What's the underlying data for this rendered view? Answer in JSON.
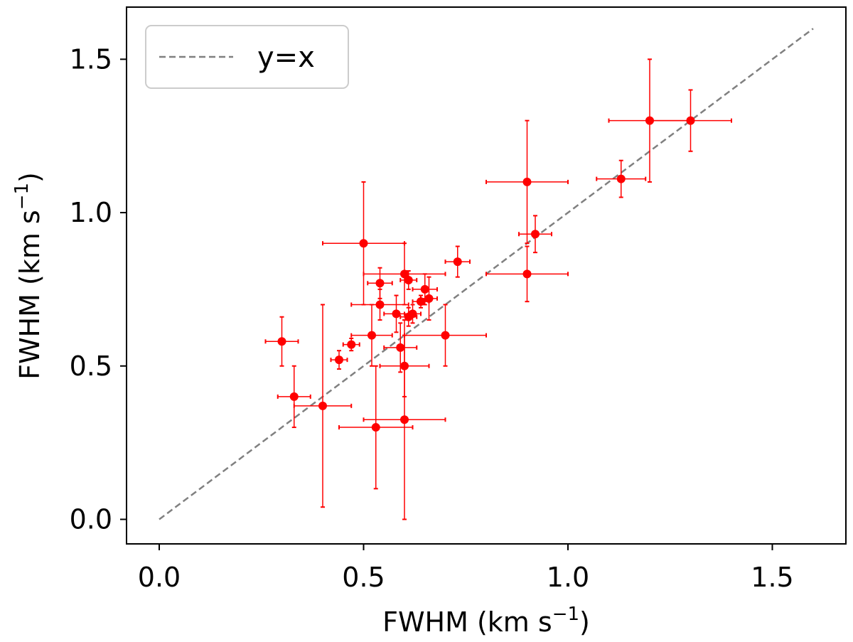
{
  "chart_data": {
    "type": "scatter",
    "xlabel": "FWHM (km s",
    "xlabel_sup": "−1",
    "xlabel_end": ")",
    "ylabel": "FWHM (km s",
    "ylabel_sup": "−1",
    "ylabel_end": ")",
    "xlim": [
      -0.08,
      1.68
    ],
    "ylim": [
      -0.08,
      1.67
    ],
    "x_ticks": [
      0.0,
      0.5,
      1.0,
      1.5
    ],
    "y_ticks": [
      0.0,
      0.5,
      1.0,
      1.5
    ],
    "x_tick_labels": [
      "0.0",
      "0.5",
      "1.0",
      "1.5"
    ],
    "y_tick_labels": [
      "0.0",
      "0.5",
      "1.0",
      "1.5"
    ],
    "grid": false,
    "legend": {
      "placement": "top-left",
      "entries": [
        {
          "label": "y=x",
          "style": "dashed",
          "color": "#808080"
        }
      ]
    },
    "reference_line": {
      "name": "y=x",
      "x": [
        0.0,
        1.6
      ],
      "y": [
        0.0,
        1.6
      ],
      "color": "#808080"
    },
    "marker_color": "#ff0000",
    "points": [
      {
        "x": 0.3,
        "y": 0.58,
        "xerr": 0.04,
        "yerr": 0.08
      },
      {
        "x": 0.33,
        "y": 0.4,
        "xerr": 0.04,
        "yerr": 0.1
      },
      {
        "x": 0.4,
        "y": 0.37,
        "xerr": 0.07,
        "yerr": 0.33
      },
      {
        "x": 0.44,
        "y": 0.52,
        "xerr": 0.02,
        "yerr": 0.03
      },
      {
        "x": 0.47,
        "y": 0.57,
        "xerr": 0.02,
        "yerr": 0.02
      },
      {
        "x": 0.5,
        "y": 0.9,
        "xerr": 0.1,
        "yerr": 0.2
      },
      {
        "x": 0.52,
        "y": 0.6,
        "xerr": 0.05,
        "yerr": 0.1
      },
      {
        "x": 0.53,
        "y": 0.3,
        "xerr": 0.09,
        "yerr": 0.2
      },
      {
        "x": 0.54,
        "y": 0.77,
        "xerr": 0.03,
        "yerr": 0.05
      },
      {
        "x": 0.54,
        "y": 0.7,
        "xerr": 0.07,
        "yerr": 0.05
      },
      {
        "x": 0.58,
        "y": 0.67,
        "xerr": 0.03,
        "yerr": 0.06
      },
      {
        "x": 0.59,
        "y": 0.56,
        "xerr": 0.04,
        "yerr": 0.08
      },
      {
        "x": 0.6,
        "y": 0.8,
        "xerr": 0.1,
        "yerr": 0.1
      },
      {
        "x": 0.6,
        "y": 0.5,
        "xerr": 0.06,
        "yerr": 0.1
      },
      {
        "x": 0.6,
        "y": 0.325,
        "xerr": 0.1,
        "yerr": 0.325
      },
      {
        "x": 0.61,
        "y": 0.78,
        "xerr": 0.02,
        "yerr": 0.03
      },
      {
        "x": 0.61,
        "y": 0.66,
        "xerr": 0.02,
        "yerr": 0.03
      },
      {
        "x": 0.62,
        "y": 0.67,
        "xerr": 0.02,
        "yerr": 0.03
      },
      {
        "x": 0.64,
        "y": 0.71,
        "xerr": 0.02,
        "yerr": 0.02
      },
      {
        "x": 0.65,
        "y": 0.75,
        "xerr": 0.03,
        "yerr": 0.05
      },
      {
        "x": 0.66,
        "y": 0.72,
        "xerr": 0.02,
        "yerr": 0.07
      },
      {
        "x": 0.7,
        "y": 0.6,
        "xerr": 0.1,
        "yerr": 0.1
      },
      {
        "x": 0.73,
        "y": 0.84,
        "xerr": 0.03,
        "yerr": 0.05
      },
      {
        "x": 0.9,
        "y": 1.1,
        "xerr": 0.1,
        "yerr": 0.2
      },
      {
        "x": 0.9,
        "y": 0.8,
        "xerr": 0.1,
        "yerr": 0.09
      },
      {
        "x": 0.92,
        "y": 0.93,
        "xerr": 0.04,
        "yerr": 0.06
      },
      {
        "x": 1.13,
        "y": 1.11,
        "xerr": 0.06,
        "yerr": 0.06
      },
      {
        "x": 1.2,
        "y": 1.3,
        "xerr": 0.1,
        "yerr": 0.2
      },
      {
        "x": 1.3,
        "y": 1.3,
        "xerr": 0.1,
        "yerr": 0.1
      }
    ]
  }
}
